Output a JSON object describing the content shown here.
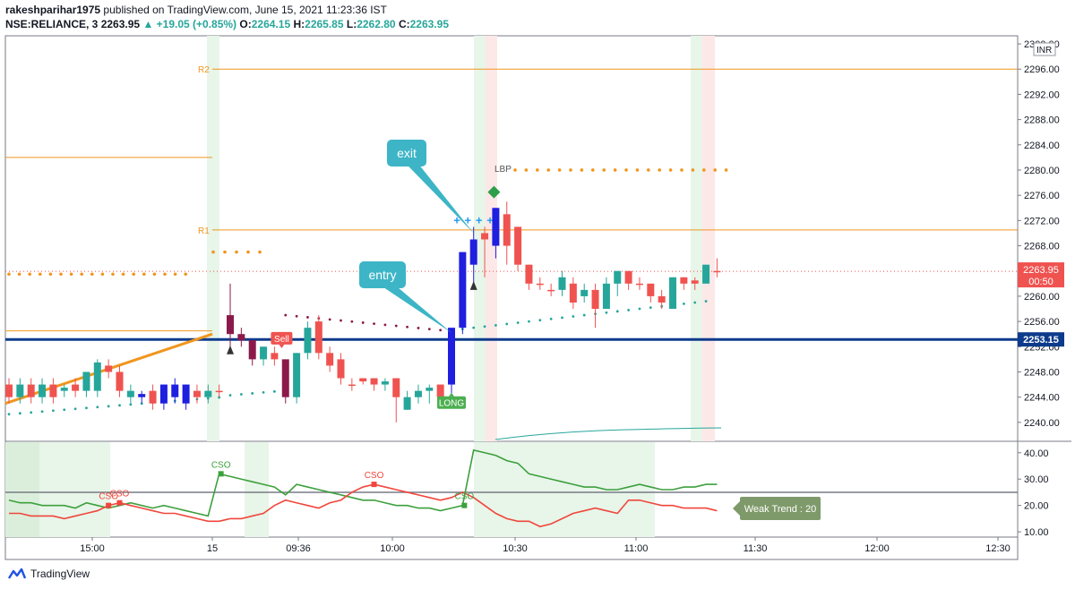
{
  "header": {
    "publisher_line": "rakeshparihar1975",
    "published_text": "published on TradingView.com, June 15, 2021 11:23:36 IST",
    "symbol": "NSE:RELIANCE, 3",
    "last_price": "2263.95",
    "change": "▲ +19.05 (+0.85%)",
    "open_label": "O:",
    "open": "2264.15",
    "high_label": "H:",
    "high": "2265.85",
    "low_label": "L:",
    "low": "2262.80",
    "close_label": "C:",
    "close": "2263.95"
  },
  "currency": "INR",
  "footer": {
    "brand": "TradingView"
  },
  "colors": {
    "bull": "#26a69a",
    "bear": "#ef5350",
    "blue": "#1f1fe0",
    "maroon": "#8b1a4a",
    "orange": "#f0961e",
    "navy": "#0d3b8c",
    "green_osc": "#3ca03c",
    "red_osc": "#f0463c"
  },
  "chart_data": {
    "type": "candlestick",
    "y_ticks": [
      "2240.00",
      "2244.00",
      "2248.00",
      "2252.00",
      "2256.00",
      "2260.00",
      "2264.00",
      "2268.00",
      "2272.00",
      "2276.00",
      "2280.00",
      "2284.00",
      "2288.00",
      "2292.00",
      "2296.00",
      "2300.00"
    ],
    "ylim": [
      2237,
      2301
    ],
    "x_ticks": [
      "15:00",
      "15",
      "09:36",
      "10:00",
      "10:30",
      "11:00",
      "11:30",
      "12:00",
      "12:30"
    ],
    "price_badge": {
      "price": "2263.95",
      "countdown": "00:50",
      "value": 2263.95
    },
    "level_badge": {
      "price": "2253.15",
      "value": 2253.15
    },
    "levels": [
      {
        "label": "R2",
        "value": 2296.0
      },
      {
        "label": "R1",
        "value": 2270.5
      }
    ],
    "left_levels": [
      2282.0,
      2254.5
    ],
    "lbp_label": "LBP",
    "lbp_level": 2280.0,
    "trend_line": {
      "from": 2243.0,
      "to": 2254.0
    },
    "candles": [
      {
        "o": 2244,
        "h": 2247,
        "l": 2243,
        "c": 2246,
        "color": "red"
      },
      {
        "o": 2246,
        "h": 2247,
        "l": 2243,
        "c": 2244,
        "color": "green"
      },
      {
        "o": 2246,
        "h": 2247,
        "l": 2243,
        "c": 2244,
        "color": "red"
      },
      {
        "o": 2244,
        "h": 2247,
        "l": 2243,
        "c": 2246,
        "color": "green"
      },
      {
        "o": 2244,
        "h": 2247,
        "l": 2243,
        "c": 2246,
        "color": "red"
      },
      {
        "o": 2245,
        "h": 2246,
        "l": 2244,
        "c": 2245.5,
        "color": "green"
      },
      {
        "o": 2245,
        "h": 2247,
        "l": 2244,
        "c": 2246,
        "color": "red"
      },
      {
        "o": 2245,
        "h": 2248,
        "l": 2244,
        "c": 2248,
        "color": "green"
      },
      {
        "o": 2245,
        "h": 2250,
        "l": 2244,
        "c": 2249.5,
        "color": "green"
      },
      {
        "o": 2249,
        "h": 2250,
        "l": 2247,
        "c": 2248,
        "color": "red"
      },
      {
        "o": 2248,
        "h": 2249,
        "l": 2244,
        "c": 2245,
        "color": "red"
      },
      {
        "o": 2244,
        "h": 2246,
        "l": 2243,
        "c": 2245,
        "color": "green"
      },
      {
        "o": 2244,
        "h": 2245,
        "l": 2243,
        "c": 2244.5,
        "color": "blue"
      },
      {
        "o": 2245,
        "h": 2246,
        "l": 2242,
        "c": 2243,
        "color": "red"
      },
      {
        "o": 2243,
        "h": 2246,
        "l": 2242,
        "c": 2246,
        "color": "blue"
      },
      {
        "o": 2246,
        "h": 2247,
        "l": 2243,
        "c": 2244,
        "color": "blue"
      },
      {
        "o": 2243,
        "h": 2246,
        "l": 2242,
        "c": 2246,
        "color": "blue"
      },
      {
        "o": 2245,
        "h": 2246,
        "l": 2243,
        "c": 2244,
        "color": "red"
      },
      {
        "o": 2244,
        "h": 2246,
        "l": 2243,
        "c": 2245,
        "color": "green"
      },
      {
        "o": 2245,
        "h": 2246,
        "l": 2244,
        "c": 2245,
        "color": "red"
      },
      {
        "o": 2254,
        "h": 2262,
        "l": 2252,
        "c": 2257,
        "color": "maroon"
      },
      {
        "o": 2254,
        "h": 2255,
        "l": 2252,
        "c": 2253,
        "color": "maroon"
      },
      {
        "o": 2253,
        "h": 2253,
        "l": 2249,
        "c": 2250,
        "color": "maroon"
      },
      {
        "o": 2250,
        "h": 2252,
        "l": 2249,
        "c": 2252,
        "color": "green"
      },
      {
        "o": 2251,
        "h": 2252,
        "l": 2249,
        "c": 2250,
        "color": "red"
      },
      {
        "o": 2250,
        "h": 2250,
        "l": 2243,
        "c": 2244,
        "color": "maroon"
      },
      {
        "o": 2244,
        "h": 2251,
        "l": 2243,
        "c": 2251,
        "color": "green"
      },
      {
        "o": 2251,
        "h": 2256,
        "l": 2250,
        "c": 2255,
        "color": "green"
      },
      {
        "o": 2256,
        "h": 2257,
        "l": 2250,
        "c": 2251,
        "color": "red"
      },
      {
        "o": 2251,
        "h": 2252,
        "l": 2248,
        "c": 2249,
        "color": "red"
      },
      {
        "o": 2250,
        "h": 2251,
        "l": 2246,
        "c": 2247,
        "color": "red"
      },
      {
        "o": 2246,
        "h": 2247,
        "l": 2245,
        "c": 2246,
        "color": "red"
      },
      {
        "o": 2247,
        "h": 2247,
        "l": 2246,
        "c": 2246.5,
        "color": "red"
      },
      {
        "o": 2247,
        "h": 2247,
        "l": 2245,
        "c": 2246,
        "color": "red"
      },
      {
        "o": 2246,
        "h": 2247,
        "l": 2245,
        "c": 2246.5,
        "color": "green"
      },
      {
        "o": 2247,
        "h": 2247,
        "l": 2240,
        "c": 2244,
        "color": "red"
      },
      {
        "o": 2242,
        "h": 2245,
        "l": 2242,
        "c": 2244,
        "color": "green"
      },
      {
        "o": 2244,
        "h": 2246,
        "l": 2243,
        "c": 2245,
        "color": "green"
      },
      {
        "o": 2245,
        "h": 2246,
        "l": 2243,
        "c": 2245.5,
        "color": "green"
      },
      {
        "o": 2246,
        "h": 2246,
        "l": 2243,
        "c": 2244,
        "color": "red"
      },
      {
        "o": 2246,
        "h": 2255,
        "l": 2243,
        "c": 2255,
        "color": "blue"
      },
      {
        "o": 2255,
        "h": 2267,
        "l": 2254,
        "c": 2267,
        "color": "blue"
      },
      {
        "o": 2265,
        "h": 2271,
        "l": 2262,
        "c": 2269,
        "color": "blue"
      },
      {
        "o": 2269,
        "h": 2271,
        "l": 2263,
        "c": 2270,
        "color": "red"
      },
      {
        "o": 2268,
        "h": 2274,
        "l": 2266,
        "c": 2274,
        "color": "blue"
      },
      {
        "o": 2273,
        "h": 2275,
        "l": 2265,
        "c": 2268,
        "color": "red"
      },
      {
        "o": 2271,
        "h": 2271,
        "l": 2264,
        "c": 2265,
        "color": "red"
      },
      {
        "o": 2265,
        "h": 2265,
        "l": 2261,
        "c": 2262,
        "color": "red"
      },
      {
        "o": 2262,
        "h": 2263,
        "l": 2261,
        "c": 2262,
        "color": "red"
      },
      {
        "o": 2261,
        "h": 2262,
        "l": 2260,
        "c": 2261,
        "color": "red"
      },
      {
        "o": 2261,
        "h": 2264,
        "l": 2260,
        "c": 2263,
        "color": "green"
      },
      {
        "o": 2262,
        "h": 2263,
        "l": 2258,
        "c": 2259,
        "color": "red"
      },
      {
        "o": 2260,
        "h": 2262,
        "l": 2259,
        "c": 2261,
        "color": "green"
      },
      {
        "o": 2261,
        "h": 2262,
        "l": 2255,
        "c": 2258,
        "color": "red"
      },
      {
        "o": 2258,
        "h": 2263,
        "l": 2258,
        "c": 2262,
        "color": "green"
      },
      {
        "o": 2262,
        "h": 2264,
        "l": 2260,
        "c": 2264,
        "color": "green"
      },
      {
        "o": 2264,
        "h": 2264,
        "l": 2261,
        "c": 2262,
        "color": "red"
      },
      {
        "o": 2262,
        "h": 2263,
        "l": 2261,
        "c": 2262,
        "color": "red"
      },
      {
        "o": 2262,
        "h": 2262,
        "l": 2259,
        "c": 2260,
        "color": "red"
      },
      {
        "o": 2260,
        "h": 2261,
        "l": 2258,
        "c": 2259,
        "color": "red"
      },
      {
        "o": 2258,
        "h": 2263,
        "l": 2258,
        "c": 2263,
        "color": "green"
      },
      {
        "o": 2263,
        "h": 2263,
        "l": 2261,
        "c": 2262,
        "color": "red"
      },
      {
        "o": 2262,
        "h": 2263,
        "l": 2261,
        "c": 2262.5,
        "color": "red"
      },
      {
        "o": 2262,
        "h": 2265,
        "l": 2262,
        "c": 2265,
        "color": "green"
      },
      {
        "o": 2264,
        "h": 2266,
        "l": 2263,
        "c": 2263.95,
        "color": "red"
      }
    ],
    "annotations": {
      "exit_label": "exit",
      "entry_label": "entry",
      "long_label": "LONG",
      "sell_label": "Sell"
    },
    "oscillator": {
      "y_ticks": [
        "10.00",
        "20.00",
        "30.00",
        "40.00"
      ],
      "ylim": [
        8,
        44
      ],
      "threshold": 25,
      "green": [
        22,
        21,
        21,
        20,
        20,
        20,
        19,
        21,
        20,
        19,
        20,
        21,
        20,
        19,
        20,
        19,
        18,
        17,
        16,
        32,
        31,
        30,
        29,
        28,
        27,
        24,
        28,
        27,
        26,
        25,
        24,
        23,
        22,
        22,
        21,
        20,
        20,
        19,
        19,
        18,
        19,
        20,
        41,
        40,
        39,
        37,
        36,
        32,
        31,
        30,
        29,
        28,
        27,
        27,
        26,
        26,
        27,
        28,
        27,
        26,
        26,
        27,
        27,
        28,
        28
      ],
      "red": [
        17,
        17,
        16,
        16,
        16,
        15,
        16,
        17,
        18,
        20,
        21,
        20,
        19,
        18,
        17,
        17,
        16,
        15,
        14,
        14,
        15,
        15,
        16,
        17,
        20,
        22,
        21,
        20,
        19,
        21,
        22,
        25,
        27,
        28,
        27,
        26,
        25,
        24,
        23,
        22,
        23,
        25,
        23,
        20,
        17,
        15,
        14,
        14,
        12,
        13,
        15,
        17,
        18,
        19,
        18,
        17,
        22,
        22,
        21,
        20,
        20,
        19,
        19,
        19,
        18
      ],
      "cso_labels": [
        {
          "text": "CSO",
          "color": "red",
          "index": 9
        },
        {
          "text": "CSO",
          "color": "red",
          "index": 10
        },
        {
          "text": "CSO",
          "color": "green",
          "index": 19
        },
        {
          "text": "CSO",
          "color": "red",
          "index": 33
        },
        {
          "text": "CSO",
          "color": "green",
          "index": 41
        }
      ],
      "badge": "Weak Trend : 20"
    }
  }
}
